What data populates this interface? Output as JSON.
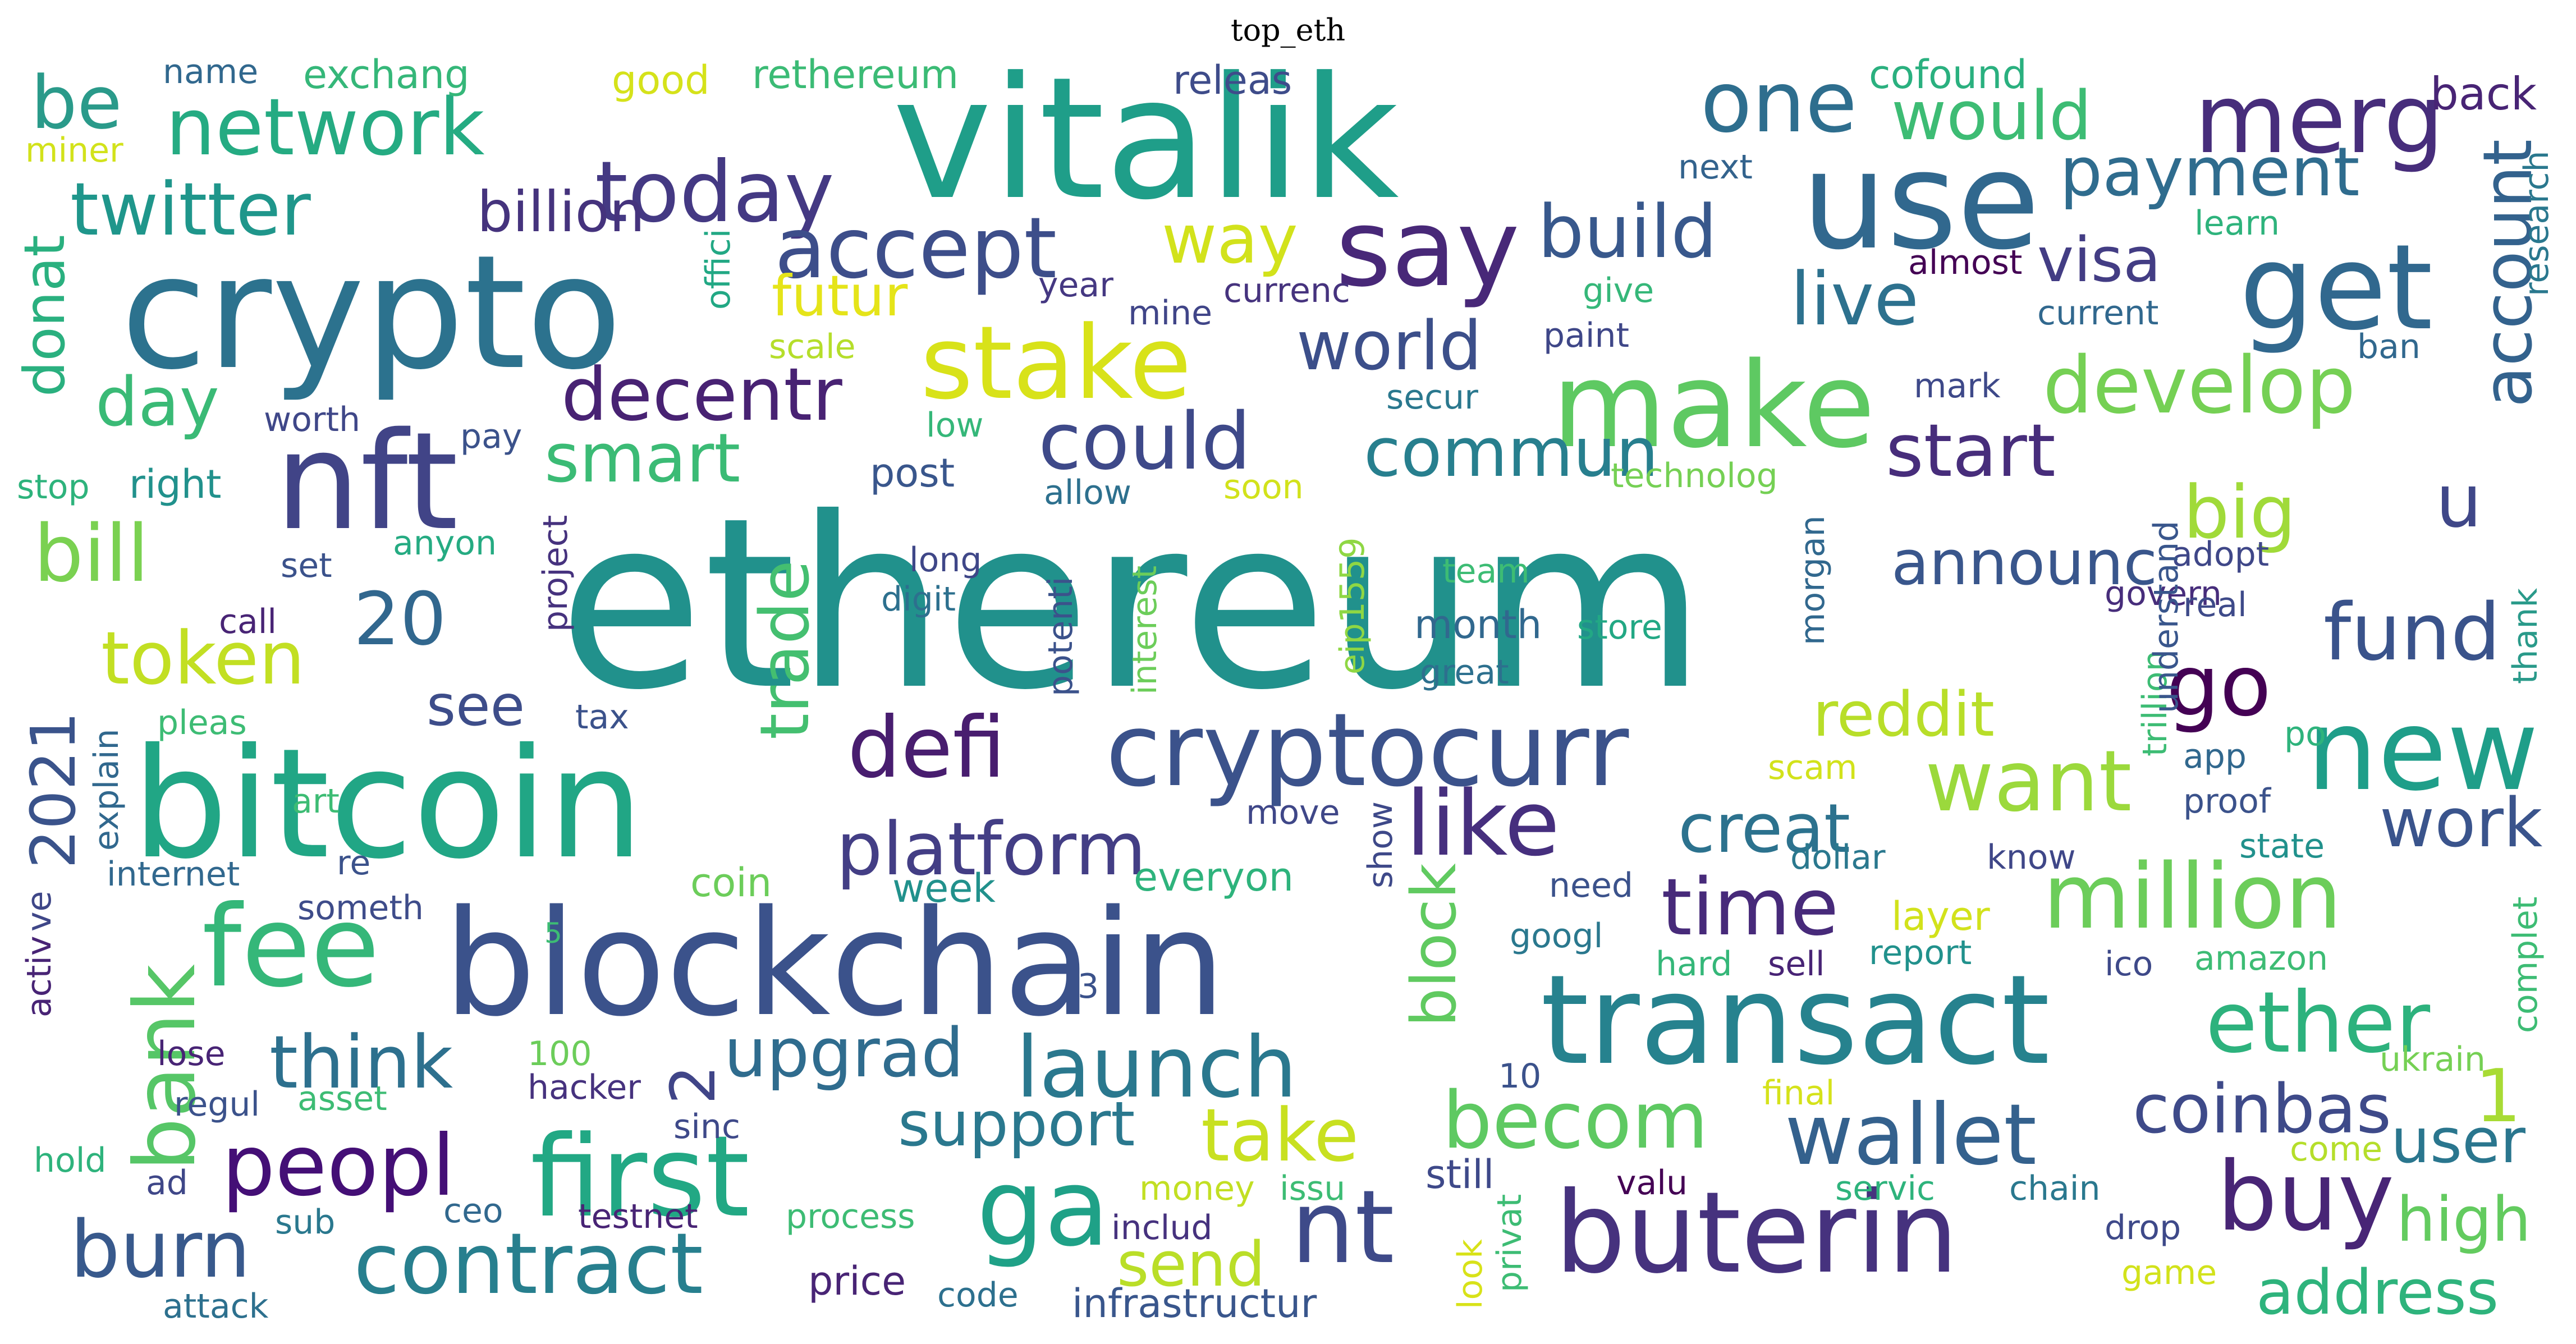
{
  "title": "top_eth",
  "words": [
    {
      "text": "ethereum",
      "color": "#21918c"
    },
    {
      "text": "vitalik",
      "color": "#1f9e89"
    },
    {
      "text": "crypto",
      "color": "#2c728e"
    },
    {
      "text": "bitcoin",
      "color": "#21a685"
    },
    {
      "text": "blockchain",
      "color": "#3b528b"
    },
    {
      "text": "nft",
      "color": "#414487"
    },
    {
      "text": "use",
      "color": "#31688e"
    },
    {
      "text": "make",
      "color": "#5ec962"
    },
    {
      "text": "transact",
      "color": "#26828e"
    },
    {
      "text": "buterin",
      "color": "#46327e"
    },
    {
      "text": "cryptocurr",
      "color": "#3b528b"
    },
    {
      "text": "first",
      "color": "#22a884"
    },
    {
      "text": "fee",
      "color": "#35b779"
    },
    {
      "text": "get",
      "color": "#31688e"
    },
    {
      "text": "new",
      "color": "#1f9e89"
    },
    {
      "text": "stake",
      "color": "#d8e219"
    },
    {
      "text": "say",
      "color": "#482878"
    },
    {
      "text": "merg",
      "color": "#472d7b"
    },
    {
      "text": "network",
      "color": "#25ab82"
    },
    {
      "text": "today",
      "color": "#443983"
    },
    {
      "text": "ga",
      "color": "#1fa187"
    },
    {
      "text": "nt",
      "color": "#3e4a89"
    },
    {
      "text": "million",
      "color": "#6ccd5a"
    },
    {
      "text": "ether",
      "color": "#2db27d"
    },
    {
      "text": "contract",
      "color": "#277f8e"
    },
    {
      "text": "buy",
      "color": "#482576"
    },
    {
      "text": "wallet",
      "color": "#34618d"
    },
    {
      "text": "like",
      "color": "#462f7e"
    },
    {
      "text": "develop",
      "color": "#75d054"
    },
    {
      "text": "peopl",
      "color": "#440f76"
    },
    {
      "text": "launch",
      "color": "#2a788e"
    },
    {
      "text": "bank",
      "color": "#56c667"
    },
    {
      "text": "defi",
      "color": "#481d6f"
    },
    {
      "text": "one",
      "color": "#2e6e8e"
    },
    {
      "text": "accept",
      "color": "#3d4e8a"
    },
    {
      "text": "could",
      "color": "#3e4989"
    },
    {
      "text": "time",
      "color": "#472a7a"
    },
    {
      "text": "becom",
      "color": "#5ec962"
    },
    {
      "text": "burn",
      "color": "#38598c"
    },
    {
      "text": "fund",
      "color": "#3a538b"
    },
    {
      "text": "platform",
      "color": "#433e85"
    },
    {
      "text": "creat",
      "color": "#2c728e"
    },
    {
      "text": "think",
      "color": "#2d708e"
    },
    {
      "text": "want",
      "color": "#9bd93c"
    },
    {
      "text": "coinbas",
      "color": "#3e4a89"
    },
    {
      "text": "upgrad",
      "color": "#2f6c8e"
    },
    {
      "text": "big",
      "color": "#a0da39"
    },
    {
      "text": "u",
      "color": "#3f4788"
    },
    {
      "text": "go",
      "color": "#440154"
    },
    {
      "text": "twitter",
      "color": "#1f968b"
    },
    {
      "text": "be",
      "color": "#2a9a8a"
    },
    {
      "text": "decentr",
      "color": "#482273"
    },
    {
      "text": "world",
      "color": "#3c4f8a"
    },
    {
      "text": "build",
      "color": "#38588c"
    },
    {
      "text": "live",
      "color": "#2d718e"
    },
    {
      "text": "start",
      "color": "#472d7b"
    },
    {
      "text": "payment",
      "color": "#2f6c8e"
    },
    {
      "text": "would",
      "color": "#3dbc74"
    },
    {
      "text": "day",
      "color": "#3aba76"
    },
    {
      "text": "bill",
      "color": "#7ad151"
    },
    {
      "text": "token",
      "color": "#c2df23"
    },
    {
      "text": "20",
      "color": "#31678e"
    },
    {
      "text": "smart",
      "color": "#3bbb75"
    },
    {
      "text": "commun",
      "color": "#277f8e"
    },
    {
      "text": "take",
      "color": "#c8e020"
    },
    {
      "text": "work",
      "color": "#3a548c"
    },
    {
      "text": "account",
      "color": "#33628d"
    },
    {
      "text": "high",
      "color": "#63cb5f"
    },
    {
      "text": "user",
      "color": "#2a768e"
    },
    {
      "text": "address",
      "color": "#2eb37c"
    },
    {
      "text": "support",
      "color": "#2a788e"
    },
    {
      "text": "reddit",
      "color": "#b8de29"
    },
    {
      "text": "announc",
      "color": "#39568c"
    },
    {
      "text": "trade",
      "color": "#44bf70"
    },
    {
      "text": "block",
      "color": "#60ca60"
    },
    {
      "text": "send",
      "color": "#bade28"
    },
    {
      "text": "2021",
      "color": "#3a538b"
    },
    {
      "text": "donat",
      "color": "#2ab07f"
    },
    {
      "text": "visa",
      "color": "#433d84"
    },
    {
      "text": "way",
      "color": "#d2e21b"
    },
    {
      "text": "futur",
      "color": "#e5e419"
    },
    {
      "text": "billion",
      "color": "#45337d"
    },
    {
      "text": "see",
      "color": "#3d4d8a"
    },
    {
      "text": "1",
      "color": "#a8db34"
    },
    {
      "text": "2",
      "color": "#404588"
    },
    {
      "text": "back",
      "color": "#482475"
    },
    {
      "text": "cofound",
      "color": "#2ab07f"
    },
    {
      "text": "exchang",
      "color": "#35b779"
    },
    {
      "text": "name",
      "color": "#31688e"
    },
    {
      "text": "good",
      "color": "#d5e21a"
    },
    {
      "text": "rethereum",
      "color": "#3bbb75"
    },
    {
      "text": "releas",
      "color": "#3e4c8a"
    },
    {
      "text": "miner",
      "color": "#d2e21b"
    },
    {
      "text": "next",
      "color": "#33638d"
    },
    {
      "text": "learn",
      "color": "#2eb37c"
    },
    {
      "text": "almost",
      "color": "#440154"
    },
    {
      "text": "research",
      "color": "#2a788e"
    },
    {
      "text": "current",
      "color": "#31688e"
    },
    {
      "text": "give",
      "color": "#35b779"
    },
    {
      "text": "paint",
      "color": "#3f4788"
    },
    {
      "text": "currenc",
      "color": "#46337e"
    },
    {
      "text": "year",
      "color": "#453882"
    },
    {
      "text": "mine",
      "color": "#404588"
    },
    {
      "text": "offici",
      "color": "#22a884"
    },
    {
      "text": "scale",
      "color": "#b5de2b"
    },
    {
      "text": "ban",
      "color": "#31688e"
    },
    {
      "text": "worth",
      "color": "#3f4788"
    },
    {
      "text": "pay",
      "color": "#3b528b"
    },
    {
      "text": "secur",
      "color": "#2a788e"
    },
    {
      "text": "low",
      "color": "#35b779"
    },
    {
      "text": "mark",
      "color": "#3e4989"
    },
    {
      "text": "soon",
      "color": "#d2e21b"
    },
    {
      "text": "allow",
      "color": "#2d708e"
    },
    {
      "text": "technolog",
      "color": "#75d054"
    },
    {
      "text": "post",
      "color": "#39568c"
    },
    {
      "text": "stop",
      "color": "#2eb37c"
    },
    {
      "text": "right",
      "color": "#21918c"
    },
    {
      "text": "anyon",
      "color": "#25ab82"
    },
    {
      "text": "set",
      "color": "#3b528b"
    },
    {
      "text": "project",
      "color": "#46327e"
    },
    {
      "text": "long",
      "color": "#3f4788"
    },
    {
      "text": "digit",
      "color": "#2d708e"
    },
    {
      "text": "team",
      "color": "#3dbc74"
    },
    {
      "text": "adopt",
      "color": "#3f4788"
    },
    {
      "text": "govern",
      "color": "#472d7b"
    },
    {
      "text": "real",
      "color": "#3e4a89"
    },
    {
      "text": "thank",
      "color": "#2a9a8a"
    },
    {
      "text": "trillion",
      "color": "#3dbc74"
    },
    {
      "text": "understand",
      "color": "#39568c"
    },
    {
      "text": "morgan",
      "color": "#31688e"
    },
    {
      "text": "eip1559",
      "color": "#8fd744"
    },
    {
      "text": "month",
      "color": "#31688e"
    },
    {
      "text": "store",
      "color": "#22a884"
    },
    {
      "text": "great",
      "color": "#2d708e"
    },
    {
      "text": "interest",
      "color": "#6ccd5a"
    },
    {
      "text": "potenti",
      "color": "#3b528b"
    },
    {
      "text": "call",
      "color": "#482475"
    },
    {
      "text": "tax",
      "color": "#3b528b"
    },
    {
      "text": "pleas",
      "color": "#3dbc74"
    },
    {
      "text": "explain",
      "color": "#31688e"
    },
    {
      "text": "art",
      "color": "#3dbc74"
    },
    {
      "text": "internet",
      "color": "#31688e"
    },
    {
      "text": "re",
      "color": "#3b528b"
    },
    {
      "text": "someth",
      "color": "#3e4c8a"
    },
    {
      "text": "ve",
      "color": "#3f4788"
    },
    {
      "text": "activ",
      "color": "#482475"
    },
    {
      "text": "5",
      "color": "#3dbc74"
    },
    {
      "text": "coin",
      "color": "#6ccd5a"
    },
    {
      "text": "week",
      "color": "#21918c"
    },
    {
      "text": "everyon",
      "color": "#2eb37c"
    },
    {
      "text": "move",
      "color": "#3f4788"
    },
    {
      "text": "show",
      "color": "#3e4989"
    },
    {
      "text": "need",
      "color": "#3b528b"
    },
    {
      "text": "googl",
      "color": "#2a788e"
    },
    {
      "text": "3",
      "color": "#3b528b"
    },
    {
      "text": "scam",
      "color": "#d2e21b"
    },
    {
      "text": "app",
      "color": "#31688e"
    },
    {
      "text": "po",
      "color": "#2eb37c"
    },
    {
      "text": "proof",
      "color": "#3b528b"
    },
    {
      "text": "state",
      "color": "#21918c"
    },
    {
      "text": "dollar",
      "color": "#2a788e"
    },
    {
      "text": "know",
      "color": "#3f4788"
    },
    {
      "text": "layer",
      "color": "#d2e21b"
    },
    {
      "text": "complet",
      "color": "#3dbc74"
    },
    {
      "text": "hard",
      "color": "#35b779"
    },
    {
      "text": "sell",
      "color": "#482475"
    },
    {
      "text": "report",
      "color": "#21918c"
    },
    {
      "text": "ico",
      "color": "#3e4989"
    },
    {
      "text": "amazon",
      "color": "#3dbc74"
    },
    {
      "text": "lose",
      "color": "#482475"
    },
    {
      "text": "100",
      "color": "#6ccd5a"
    },
    {
      "text": "regul",
      "color": "#3b528b"
    },
    {
      "text": "asset",
      "color": "#3dbc74"
    },
    {
      "text": "hacker",
      "color": "#46327e"
    },
    {
      "text": "sinc",
      "color": "#3e4989"
    },
    {
      "text": "10",
      "color": "#3b528b"
    },
    {
      "text": "ukrain",
      "color": "#75d054"
    },
    {
      "text": "final",
      "color": "#d5e21a"
    },
    {
      "text": "come",
      "color": "#b5de2b"
    },
    {
      "text": "hold",
      "color": "#2eb37c"
    },
    {
      "text": "ad",
      "color": "#3f4788"
    },
    {
      "text": "money",
      "color": "#c2df23"
    },
    {
      "text": "issu",
      "color": "#3dbc74"
    },
    {
      "text": "still",
      "color": "#3e4989"
    },
    {
      "text": "valu",
      "color": "#440154"
    },
    {
      "text": "servic",
      "color": "#2eb37c"
    },
    {
      "text": "chain",
      "color": "#2a788e"
    },
    {
      "text": "sub",
      "color": "#2a788e"
    },
    {
      "text": "ceo",
      "color": "#31688e"
    },
    {
      "text": "testnet",
      "color": "#482475"
    },
    {
      "text": "process",
      "color": "#3dbc74"
    },
    {
      "text": "includ",
      "color": "#46327e"
    },
    {
      "text": "privat",
      "color": "#3dbc74"
    },
    {
      "text": "look",
      "color": "#d8e219"
    },
    {
      "text": "drop",
      "color": "#3e4989"
    },
    {
      "text": "price",
      "color": "#482475"
    },
    {
      "text": "code",
      "color": "#2d708e"
    },
    {
      "text": "infrastructur",
      "color": "#39568c"
    },
    {
      "text": "game",
      "color": "#d2e21b"
    },
    {
      "text": "attack",
      "color": "#2d708e"
    }
  ]
}
